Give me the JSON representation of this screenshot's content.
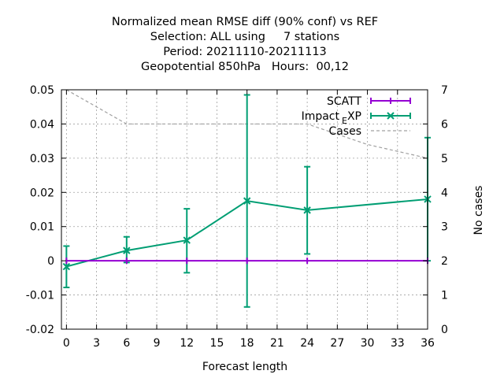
{
  "chart_data": {
    "type": "line",
    "title_lines": [
      "Normalized mean RMSE diff (90% conf) vs REF",
      "Selection: ALL using     7 stations",
      "Period: 20211110-20211113",
      "Geopotential 850hPa   Hours:  00,12"
    ],
    "xlabel": "Forecast length",
    "ylabel": "",
    "y2label": "No cases",
    "xlim": [
      -0.5,
      36
    ],
    "ylim": [
      -0.02,
      0.05
    ],
    "y2lim": [
      0,
      7
    ],
    "x_ticks": [
      "0",
      "3",
      "6",
      "9",
      "12",
      "15",
      "18",
      "21",
      "24",
      "27",
      "30",
      "33",
      "36"
    ],
    "y_ticks": [
      "-0.02",
      "-0.01",
      "0",
      "0.01",
      "0.02",
      "0.03",
      "0.04",
      "0.05"
    ],
    "y2_ticks": [
      "0",
      "1",
      "2",
      "3",
      "4",
      "5",
      "6",
      "7"
    ],
    "grid": true,
    "legend_position": "top-right",
    "series": [
      {
        "name": "SCATT",
        "color": "#9400d3",
        "x": [
          0,
          6,
          12,
          18,
          24,
          36
        ],
        "y": [
          0,
          0,
          0,
          0,
          0,
          0
        ],
        "err_low": [
          0,
          0,
          0,
          0,
          0,
          0
        ],
        "err_high": [
          0,
          0,
          0,
          0,
          0,
          0
        ]
      },
      {
        "name_main": "Impact",
        "name_sub": "E",
        "name_tail": "XP",
        "color": "#009e73",
        "x": [
          0,
          6,
          12,
          18,
          24,
          36
        ],
        "y": [
          -0.0017,
          0.003,
          0.006,
          0.0175,
          0.0148,
          0.018
        ],
        "err_low": [
          -0.0078,
          -0.0005,
          -0.0035,
          -0.0135,
          0.002,
          0.0
        ],
        "err_high": [
          0.0043,
          0.007,
          0.0152,
          0.0485,
          0.0275,
          0.036
        ]
      }
    ],
    "cases": {
      "name": "Cases",
      "color": "#a0a0a0",
      "x": [
        0,
        6,
        12,
        18,
        24,
        30,
        36
      ],
      "y": [
        7,
        6,
        6,
        6,
        6,
        5.4,
        5
      ]
    }
  }
}
